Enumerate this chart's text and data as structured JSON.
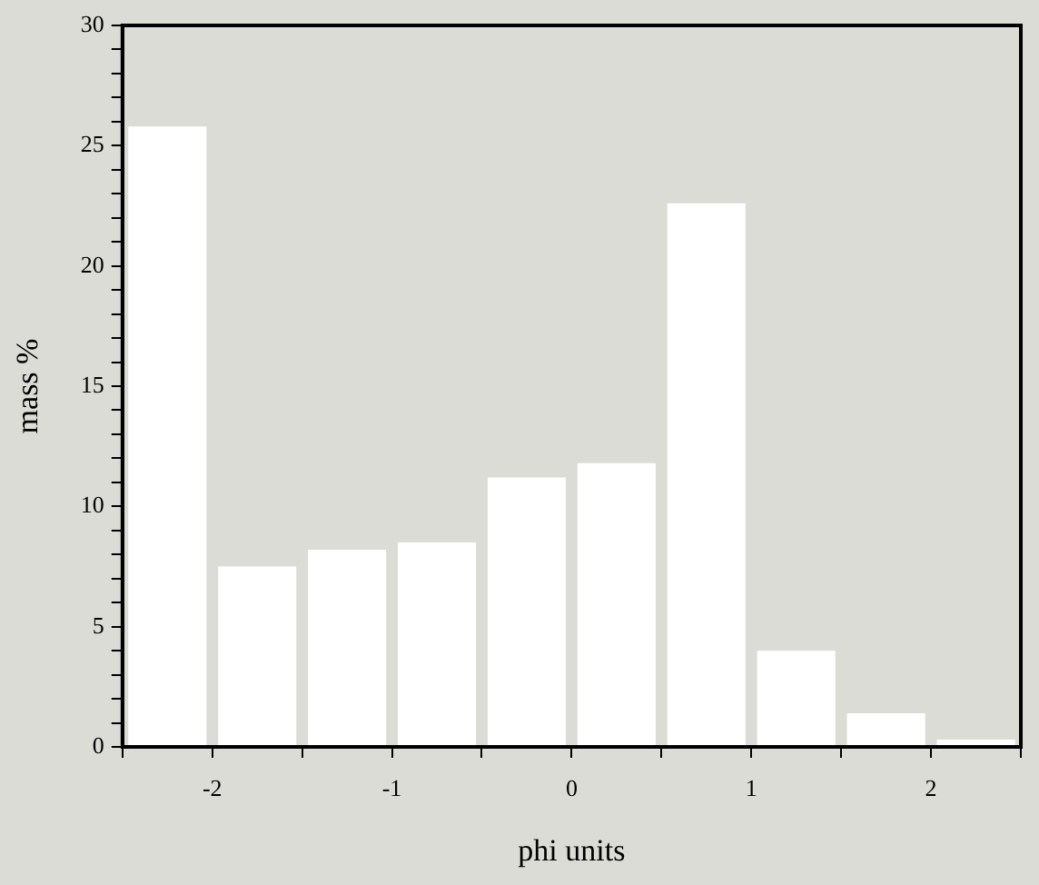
{
  "chart_data": {
    "type": "histogram",
    "xlabel": "phi units",
    "ylabel": "mass %",
    "bins": [
      -2.5,
      -2,
      -1.5,
      -1,
      -0.5,
      0,
      0.5,
      1,
      1.5,
      2,
      2.5
    ],
    "values": [
      25.8,
      7.5,
      8.2,
      8.5,
      11.2,
      11.8,
      22.6,
      4.0,
      1.4,
      0.3
    ],
    "color": "#ffffff",
    "xlim": [
      -2.5,
      2.5
    ],
    "xticks": [
      {
        "value": -2.5,
        "label": null
      },
      -2,
      {
        "value": -1.5,
        "label": null
      },
      -1,
      {
        "value": -0.5,
        "label": null
      },
      0,
      {
        "value": 0.5,
        "label": null
      },
      1,
      {
        "value": 1.5,
        "label": null
      },
      2,
      {
        "value": 2.5,
        "label": null
      }
    ],
    "ylim": [
      0,
      30
    ],
    "yticks": [
      0,
      {
        "value": 1,
        "label": null
      },
      {
        "value": 2,
        "label": null
      },
      {
        "value": 3,
        "label": null
      },
      {
        "value": 4,
        "label": null
      },
      5,
      {
        "value": 6,
        "label": null
      },
      {
        "value": 7,
        "label": null
      },
      {
        "value": 8,
        "label": null
      },
      {
        "value": 9,
        "label": null
      },
      10,
      {
        "value": 11,
        "label": null
      },
      {
        "value": 12,
        "label": null
      },
      {
        "value": 13,
        "label": null
      },
      {
        "value": 14,
        "label": null
      },
      15,
      {
        "value": 16,
        "label": null
      },
      {
        "value": 17,
        "label": null
      },
      {
        "value": 18,
        "label": null
      },
      {
        "value": 19,
        "label": null
      },
      20,
      {
        "value": 21,
        "label": null
      },
      {
        "value": 22,
        "label": null
      },
      {
        "value": 23,
        "label": null
      },
      {
        "value": 24,
        "label": null
      },
      25,
      {
        "value": 26,
        "label": null
      },
      {
        "value": 27,
        "label": null
      },
      {
        "value": 28,
        "label": null
      },
      {
        "value": 29,
        "label": null
      },
      30
    ],
    "grid": false,
    "legend": false
  }
}
